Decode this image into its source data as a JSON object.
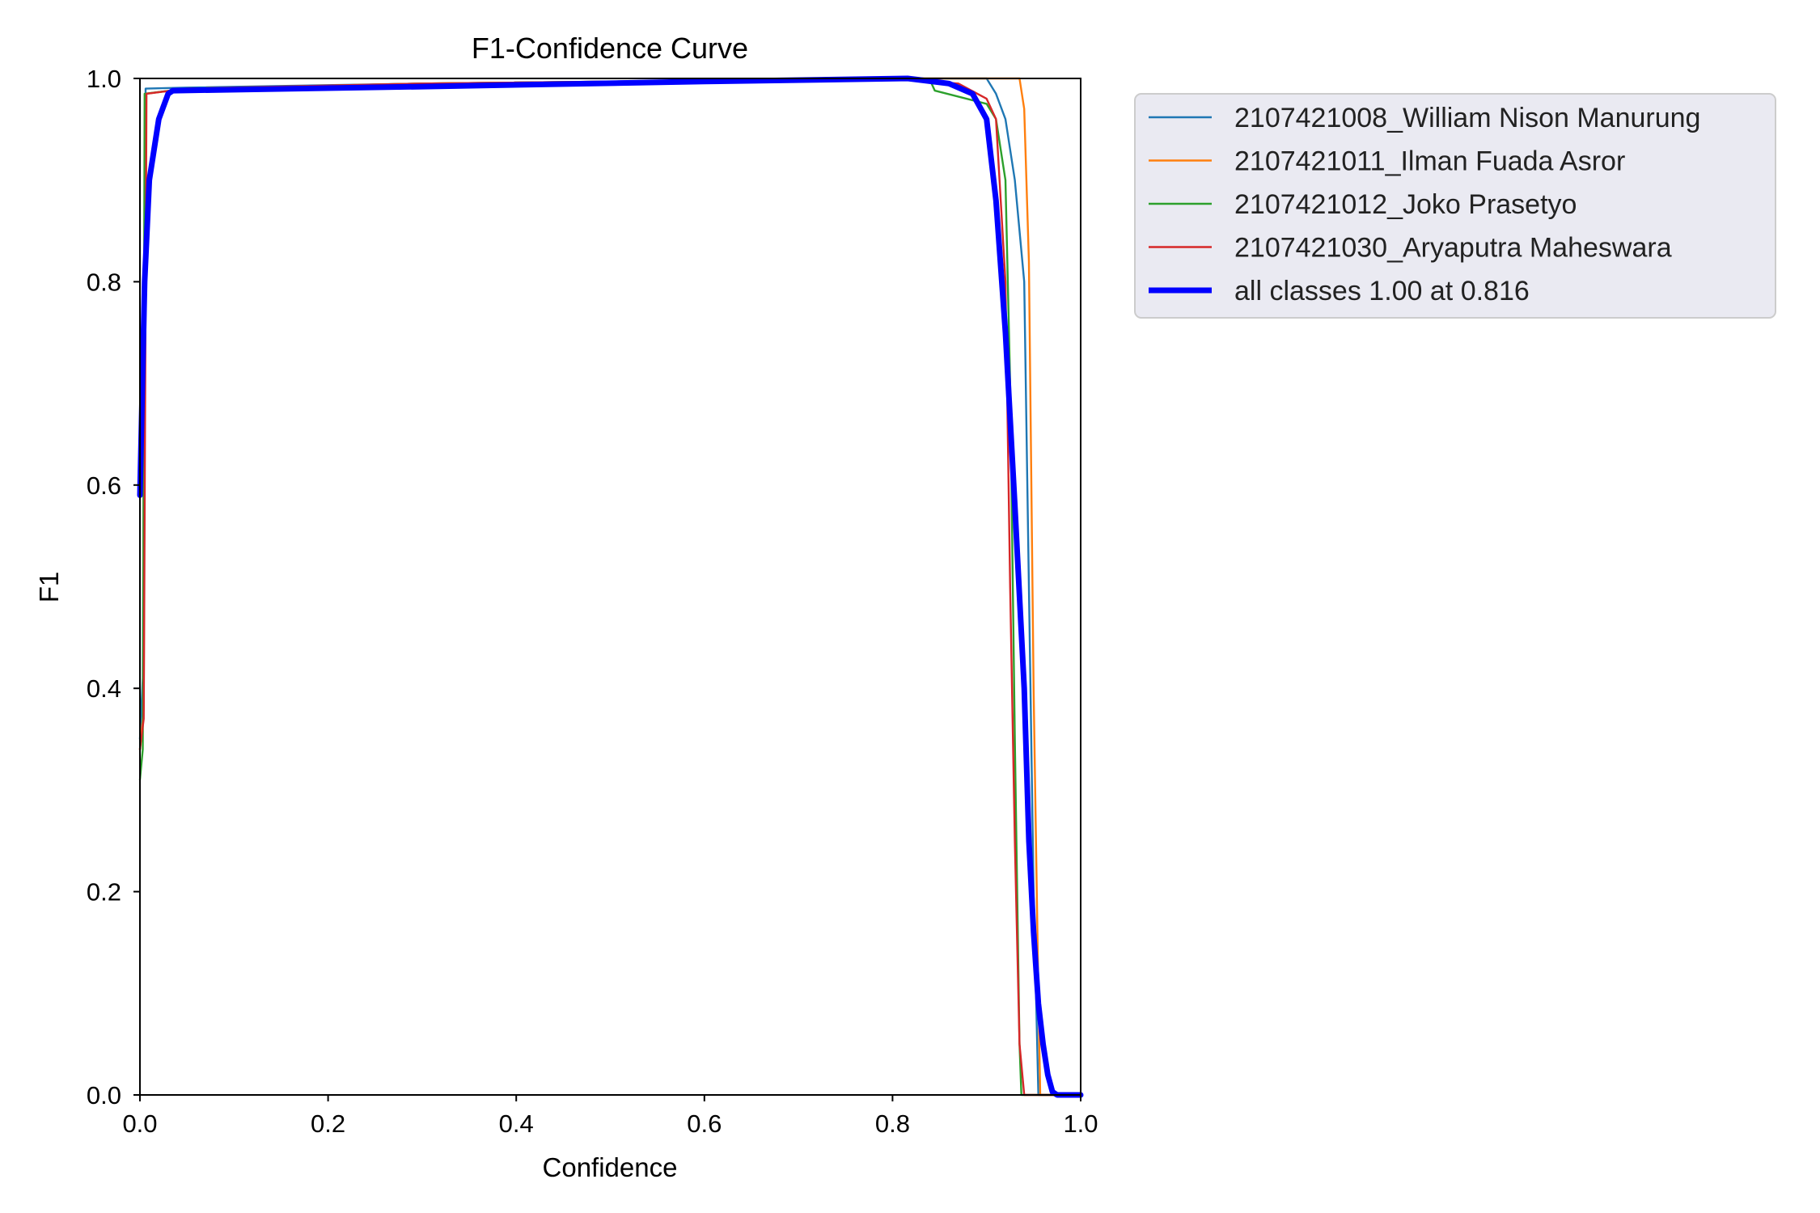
{
  "chart_data": {
    "type": "line",
    "title": "F1-Confidence Curve",
    "xlabel": "Confidence",
    "ylabel": "F1",
    "xlim": [
      0,
      1
    ],
    "ylim": [
      0,
      1
    ],
    "x_ticks": [
      "0.0",
      "0.2",
      "0.4",
      "0.6",
      "0.8",
      "1.0"
    ],
    "y_ticks": [
      "0.0",
      "0.2",
      "0.4",
      "0.6",
      "0.8",
      "1.0"
    ],
    "grid": false,
    "legend_position": "outside-right-top",
    "series": [
      {
        "name": "2107421008_William Nison Manurung",
        "color": "#1f77b4",
        "width": "thin",
        "points": [
          [
            0,
            0.35
          ],
          [
            0.003,
            0.41
          ],
          [
            0.006,
            0.99
          ],
          [
            0.05,
            0.991
          ],
          [
            0.3,
            0.995
          ],
          [
            0.6,
            0.998
          ],
          [
            0.8,
            1.0
          ],
          [
            0.9,
            1.0
          ],
          [
            0.91,
            0.985
          ],
          [
            0.92,
            0.96
          ],
          [
            0.925,
            0.93
          ],
          [
            0.93,
            0.9
          ],
          [
            0.935,
            0.85
          ],
          [
            0.94,
            0.8
          ],
          [
            0.945,
            0.5
          ],
          [
            0.95,
            0.2
          ],
          [
            0.955,
            0.0
          ],
          [
            1.0,
            0.0
          ]
        ]
      },
      {
        "name": "2107421011_Ilman Fuada Asror",
        "color": "#ff7f0e",
        "width": "thin",
        "points": [
          [
            0,
            0.34
          ],
          [
            0.004,
            0.38
          ],
          [
            0.006,
            0.985
          ],
          [
            0.05,
            0.99
          ],
          [
            0.3,
            0.995
          ],
          [
            0.6,
            0.998
          ],
          [
            0.8,
            1.0
          ],
          [
            0.935,
            1.0
          ],
          [
            0.94,
            0.97
          ],
          [
            0.945,
            0.82
          ],
          [
            0.95,
            0.4
          ],
          [
            0.955,
            0.1
          ],
          [
            0.957,
            0.0
          ],
          [
            1.0,
            0.0
          ]
        ]
      },
      {
        "name": "2107421012_Joko Prasetyo",
        "color": "#2ca02c",
        "width": "thin",
        "points": [
          [
            0,
            0.31
          ],
          [
            0.003,
            0.34
          ],
          [
            0.005,
            0.985
          ],
          [
            0.05,
            0.99
          ],
          [
            0.3,
            0.995
          ],
          [
            0.6,
            0.998
          ],
          [
            0.8,
            1.0
          ],
          [
            0.84,
            0.998
          ],
          [
            0.845,
            0.988
          ],
          [
            0.9,
            0.975
          ],
          [
            0.91,
            0.96
          ],
          [
            0.92,
            0.9
          ],
          [
            0.925,
            0.7
          ],
          [
            0.93,
            0.35
          ],
          [
            0.935,
            0.05
          ],
          [
            0.937,
            0.0
          ],
          [
            1.0,
            0.0
          ]
        ]
      },
      {
        "name": "2107421030_Aryaputra Maheswara",
        "color": "#d62728",
        "width": "thin",
        "points": [
          [
            0,
            0.34
          ],
          [
            0.004,
            0.37
          ],
          [
            0.007,
            0.985
          ],
          [
            0.05,
            0.99
          ],
          [
            0.3,
            0.995
          ],
          [
            0.6,
            0.998
          ],
          [
            0.8,
            1.0
          ],
          [
            0.87,
            0.995
          ],
          [
            0.9,
            0.98
          ],
          [
            0.91,
            0.96
          ],
          [
            0.92,
            0.8
          ],
          [
            0.925,
            0.5
          ],
          [
            0.93,
            0.25
          ],
          [
            0.935,
            0.05
          ],
          [
            0.94,
            0.0
          ],
          [
            1.0,
            0.0
          ]
        ]
      },
      {
        "name": "all classes 1.00 at 0.816",
        "color": "#0000ff",
        "width": "thick",
        "points": [
          [
            0,
            0.59
          ],
          [
            0.005,
            0.8
          ],
          [
            0.01,
            0.9
          ],
          [
            0.02,
            0.96
          ],
          [
            0.03,
            0.985
          ],
          [
            0.035,
            0.988
          ],
          [
            0.3,
            0.992
          ],
          [
            0.6,
            0.997
          ],
          [
            0.816,
            1.0
          ],
          [
            0.86,
            0.995
          ],
          [
            0.885,
            0.985
          ],
          [
            0.9,
            0.96
          ],
          [
            0.91,
            0.88
          ],
          [
            0.92,
            0.75
          ],
          [
            0.93,
            0.58
          ],
          [
            0.94,
            0.4
          ],
          [
            0.945,
            0.25
          ],
          [
            0.95,
            0.16
          ],
          [
            0.955,
            0.09
          ],
          [
            0.96,
            0.05
          ],
          [
            0.965,
            0.02
          ],
          [
            0.97,
            0.003
          ],
          [
            0.975,
            0.0
          ],
          [
            1.0,
            0.0
          ]
        ]
      }
    ]
  }
}
